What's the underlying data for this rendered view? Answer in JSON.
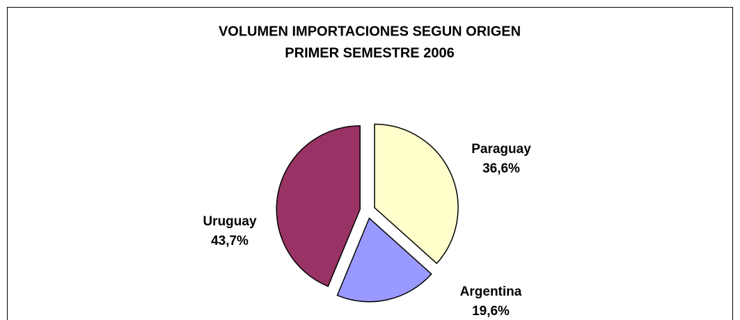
{
  "chart_data": {
    "type": "pie",
    "title": "VOLUMEN IMPORTACIONES SEGUN ORIGEN",
    "subtitle": "PRIMER SEMESTRE 2006",
    "categories": [
      "Paraguay",
      "Argentina",
      "Uruguay"
    ],
    "values": [
      36.6,
      19.6,
      43.7
    ],
    "value_labels": [
      "36,6%",
      "19,6%",
      "43,7%"
    ],
    "colors": [
      "#ffffcc",
      "#9999ff",
      "#993366"
    ]
  }
}
